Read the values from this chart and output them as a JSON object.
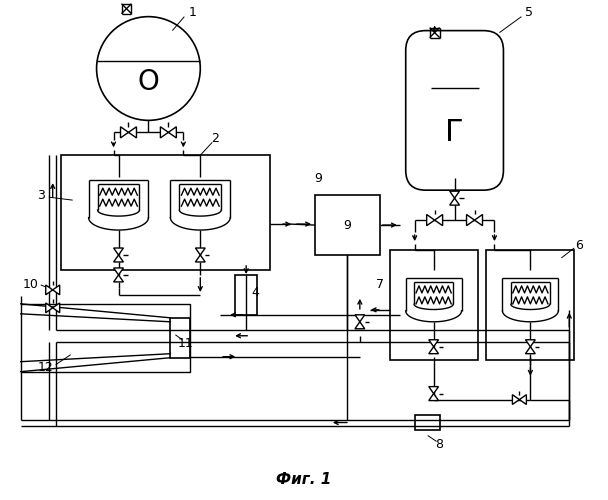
{
  "title": "Фиг. 1",
  "bg_color": "#ffffff",
  "line_color": "#000000",
  "lw": 1.0,
  "lw_thick": 1.5
}
